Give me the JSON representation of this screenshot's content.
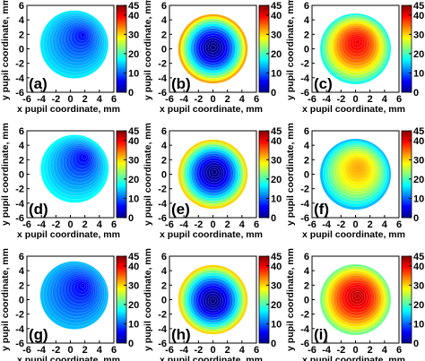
{
  "figure": {
    "x_axis_label": "x pupil coordinate, mm",
    "y_axis_label": "y pupil coordinate, mm",
    "colorbar_ticks": [
      "45",
      "40",
      "30",
      "20",
      "10",
      "0"
    ]
  },
  "chart_data": [
    {
      "type": "heatmap",
      "label": "(a)",
      "xlabel": "x pupil coordinate, mm",
      "ylabel": "y pupil coordinate, mm",
      "xlim": [
        -6,
        6
      ],
      "ylim": [
        -6,
        6
      ],
      "xticks": [
        "-6",
        "-4",
        "-2",
        "0",
        "2",
        "4",
        "6"
      ],
      "yticks": [
        "6",
        "4",
        "2",
        "0",
        "-2",
        "-4",
        "-6"
      ],
      "colorbar": {
        "min": 0,
        "max": 45,
        "ticks": [
          "45",
          "40",
          "30",
          "20",
          "10",
          "0"
        ]
      },
      "pupil_radius": 4.7,
      "center": [
        1.8,
        2.0
      ],
      "center_value": 5,
      "edge_value": 16,
      "profile": "linear",
      "max_value": 45
    },
    {
      "type": "heatmap",
      "label": "(b)",
      "xlabel": "x pupil coordinate, mm",
      "ylabel": "y pupil coordinate, mm",
      "xlim": [
        -6,
        6
      ],
      "ylim": [
        -6,
        6
      ],
      "xticks": [
        "-6",
        "-4",
        "-2",
        "0",
        "2",
        "4",
        "6"
      ],
      "yticks": [
        "6",
        "4",
        "2",
        "0",
        "-2",
        "-4",
        "-6"
      ],
      "colorbar": {
        "min": 0,
        "max": 45,
        "ticks": [
          "45",
          "40",
          "30",
          "20",
          "10",
          "0"
        ]
      },
      "pupil_radius": 4.8,
      "center": [
        0.0,
        0.2
      ],
      "center_value": 0,
      "edge_value": 32,
      "profile": "quadratic",
      "max_value": 45
    },
    {
      "type": "heatmap",
      "label": "(c)",
      "xlabel": "x pupil coordinate, mm",
      "ylabel": "y pupil coordinate, mm",
      "xlim": [
        -6,
        6
      ],
      "ylim": [
        -6,
        6
      ],
      "xticks": [
        "-6",
        "-4",
        "-2",
        "0",
        "2",
        "4",
        "6"
      ],
      "yticks": [
        "6",
        "4",
        "2",
        "0",
        "-2",
        "-4",
        "-6"
      ],
      "colorbar": {
        "min": 0,
        "max": 45,
        "ticks": [
          "45",
          "40",
          "30",
          "20",
          "10",
          "0"
        ]
      },
      "pupil_radius": 4.9,
      "center": [
        0.3,
        1.0
      ],
      "center_value": 40,
      "edge_value": 18,
      "profile": "quadratic",
      "max_value": 45
    },
    {
      "type": "heatmap",
      "label": "(d)",
      "xlabel": "x pupil coordinate, mm",
      "ylabel": "y pupil coordinate, mm",
      "xlim": [
        -6,
        6
      ],
      "ylim": [
        -6,
        6
      ],
      "xticks": [
        "-6",
        "-4",
        "-2",
        "0",
        "2",
        "4",
        "6"
      ],
      "yticks": [
        "6",
        "4",
        "2",
        "0",
        "-2",
        "-4",
        "-6"
      ],
      "colorbar": {
        "min": 0,
        "max": 45,
        "ticks": [
          "45",
          "40",
          "30",
          "20",
          "10",
          "0"
        ]
      },
      "pupil_radius": 4.7,
      "center": [
        2.0,
        2.5
      ],
      "center_value": 4,
      "edge_value": 17,
      "profile": "linear",
      "max_value": 45
    },
    {
      "type": "heatmap",
      "label": "(e)",
      "xlabel": "x pupil coordinate, mm",
      "ylabel": "y pupil coordinate, mm",
      "xlim": [
        -6,
        6
      ],
      "ylim": [
        -6,
        6
      ],
      "xticks": [
        "-6",
        "-4",
        "-2",
        "0",
        "2",
        "4",
        "6"
      ],
      "yticks": [
        "6",
        "4",
        "2",
        "0",
        "-2",
        "-4",
        "-6"
      ],
      "colorbar": {
        "min": 0,
        "max": 45,
        "ticks": [
          "45",
          "40",
          "30",
          "20",
          "10",
          "0"
        ]
      },
      "pupil_radius": 4.8,
      "center": [
        0.2,
        0.3
      ],
      "center_value": 0,
      "edge_value": 30,
      "profile": "quadratic",
      "max_value": 45
    },
    {
      "type": "heatmap",
      "label": "(f)",
      "xlabel": "x pupil coordinate, mm",
      "ylabel": "y pupil coordinate, mm",
      "xlim": [
        -6,
        6
      ],
      "ylim": [
        -6,
        6
      ],
      "xticks": [
        "-6",
        "-4",
        "-2",
        "0",
        "2",
        "4",
        "6"
      ],
      "yticks": [
        "6",
        "4",
        "2",
        "0",
        "-2",
        "-4",
        "-6"
      ],
      "colorbar": {
        "min": 0,
        "max": 45,
        "ticks": [
          "45",
          "40",
          "30",
          "20",
          "10",
          "0"
        ]
      },
      "pupil_radius": 4.9,
      "center": [
        0.5,
        1.0
      ],
      "center_value": 32,
      "edge_value": 14,
      "profile": "quadratic",
      "max_value": 45
    },
    {
      "type": "heatmap",
      "label": "(g)",
      "xlabel": "x pupil coordinate, mm",
      "ylabel": "y pupil coordinate, mm",
      "xlim": [
        -6,
        6
      ],
      "ylim": [
        -6,
        6
      ],
      "xticks": [
        "-6",
        "-4",
        "-2",
        "0",
        "2",
        "4",
        "6"
      ],
      "yticks": [
        "6",
        "4",
        "2",
        "0",
        "-2",
        "-4",
        "-6"
      ],
      "colorbar": {
        "min": 0,
        "max": 45,
        "ticks": [
          "45",
          "40",
          "30",
          "20",
          "10",
          "0"
        ]
      },
      "pupil_radius": 4.7,
      "center": [
        1.8,
        2.0
      ],
      "center_value": 4,
      "edge_value": 14,
      "profile": "linear",
      "max_value": 45
    },
    {
      "type": "heatmap",
      "label": "(h)",
      "xlabel": "x pupil coordinate, mm",
      "ylabel": "y pupil coordinate, mm",
      "xlim": [
        -6,
        6
      ],
      "ylim": [
        -6,
        6
      ],
      "xticks": [
        "-6",
        "-4",
        "-2",
        "0",
        "2",
        "4",
        "6"
      ],
      "yticks": [
        "6",
        "4",
        "2",
        "0",
        "-2",
        "-4",
        "-6"
      ],
      "colorbar": {
        "min": 0,
        "max": 45,
        "ticks": [
          "45",
          "40",
          "30",
          "20",
          "10",
          "0"
        ]
      },
      "pupil_radius": 4.8,
      "center": [
        0.0,
        -0.2
      ],
      "center_value": 0,
      "edge_value": 30,
      "profile": "quadratic",
      "max_value": 45
    },
    {
      "type": "heatmap",
      "label": "(i)",
      "xlabel": "x pupil coordinate, mm",
      "ylabel": "y pupil coordinate, mm",
      "xlim": [
        -6,
        6
      ],
      "ylim": [
        -6,
        6
      ],
      "xticks": [
        "-6",
        "-4",
        "-2",
        "0",
        "2",
        "4",
        "6"
      ],
      "yticks": [
        "6",
        "4",
        "2",
        "0",
        "-2",
        "-4",
        "-6"
      ],
      "colorbar": {
        "min": 0,
        "max": 45,
        "ticks": [
          "45",
          "40",
          "30",
          "20",
          "10",
          "0"
        ]
      },
      "pupil_radius": 4.9,
      "center": [
        0.3,
        0.5
      ],
      "center_value": 42,
      "edge_value": 22,
      "profile": "quadratic",
      "max_value": 45
    }
  ]
}
